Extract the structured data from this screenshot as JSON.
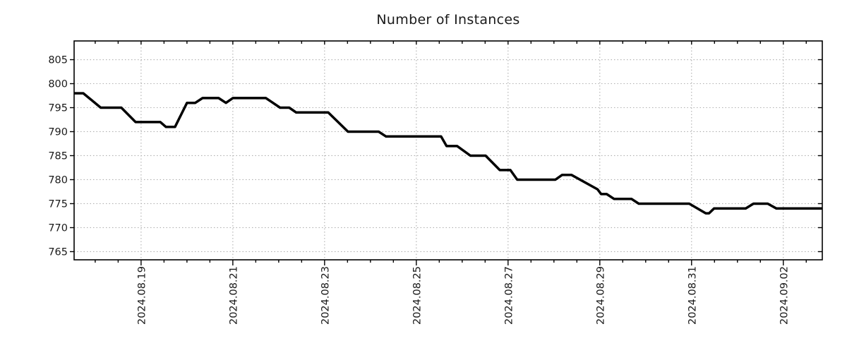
{
  "chart_data": {
    "type": "line",
    "title": "Number of Instances",
    "series": [
      {
        "name": "instances",
        "points": [
          [
            -1.46,
            798
          ],
          [
            -1.26,
            798
          ],
          [
            -0.88,
            795
          ],
          [
            -0.43,
            795
          ],
          [
            -0.12,
            792
          ],
          [
            0.42,
            792
          ],
          [
            0.54,
            791
          ],
          [
            0.74,
            791
          ],
          [
            1.0,
            796
          ],
          [
            1.18,
            796
          ],
          [
            1.34,
            797
          ],
          [
            1.69,
            797
          ],
          [
            1.85,
            796
          ],
          [
            2.0,
            797
          ],
          [
            2.72,
            797
          ],
          [
            3.03,
            795
          ],
          [
            3.23,
            795
          ],
          [
            3.38,
            794
          ],
          [
            4.08,
            794
          ],
          [
            4.51,
            790
          ],
          [
            5.18,
            790
          ],
          [
            5.34,
            789
          ],
          [
            6.54,
            789
          ],
          [
            6.66,
            787
          ],
          [
            6.89,
            787
          ],
          [
            7.18,
            785
          ],
          [
            7.51,
            785
          ],
          [
            7.82,
            782
          ],
          [
            8.05,
            782
          ],
          [
            8.2,
            780
          ],
          [
            9.03,
            780
          ],
          [
            9.18,
            781
          ],
          [
            9.38,
            781
          ],
          [
            9.95,
            778
          ],
          [
            10.03,
            777
          ],
          [
            10.15,
            777
          ],
          [
            10.31,
            776
          ],
          [
            10.69,
            776
          ],
          [
            10.85,
            775
          ],
          [
            11.95,
            775
          ],
          [
            12.31,
            773
          ],
          [
            12.38,
            773
          ],
          [
            12.49,
            774
          ],
          [
            13.18,
            774
          ],
          [
            13.35,
            775
          ],
          [
            13.66,
            775
          ],
          [
            13.85,
            774
          ],
          [
            14.85,
            774
          ]
        ]
      }
    ],
    "x_unit": "days_since_2024_08_19",
    "x_domain": [
      -1.46,
      14.85
    ],
    "y_domain": [
      763.3,
      808.9
    ],
    "y_ticks": [
      765,
      770,
      775,
      780,
      785,
      790,
      795,
      800,
      805
    ],
    "x_ticks": [
      {
        "t": 0,
        "label": "2024.08.19"
      },
      {
        "t": 2,
        "label": "2024.08.21"
      },
      {
        "t": 4,
        "label": "2024.08.23"
      },
      {
        "t": 6,
        "label": "2024.08.25"
      },
      {
        "t": 8,
        "label": "2024.08.27"
      },
      {
        "t": 10,
        "label": "2024.08.29"
      },
      {
        "t": 12,
        "label": "2024.08.31"
      },
      {
        "t": 14,
        "label": "2024.09.02"
      }
    ],
    "minor_tick_step_days": 0.5,
    "grid": true,
    "legend": "none",
    "colors": {
      "line": "#000000",
      "grid": "#b0b0b0",
      "border": "#000000",
      "text": "#1a1a1a"
    }
  }
}
